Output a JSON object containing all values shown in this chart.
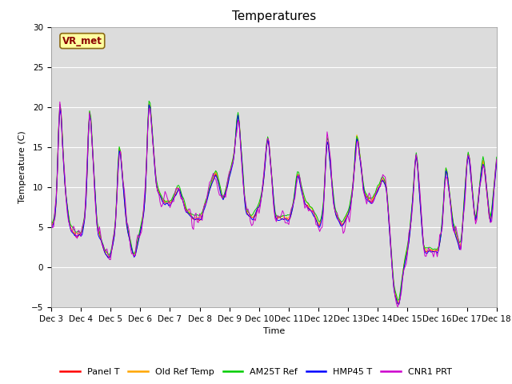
{
  "title": "Temperatures",
  "xlabel": "Time",
  "ylabel": "Temperature (C)",
  "ylim": [
    -5,
    30
  ],
  "xlim": [
    0,
    360
  ],
  "fig_bg_color": "#ffffff",
  "plot_bg_color": "#dcdcdc",
  "annotation_text": "VR_met",
  "annotation_color": "#8b0000",
  "annotation_bg": "#ffffa0",
  "annotation_border": "#8b6914",
  "series": [
    {
      "name": "Panel T",
      "color": "#ff0000"
    },
    {
      "name": "Old Ref Temp",
      "color": "#ffa500"
    },
    {
      "name": "AM25T Ref",
      "color": "#00cc00"
    },
    {
      "name": "HMP45 T",
      "color": "#0000ff"
    },
    {
      "name": "CNR1 PRT",
      "color": "#cc00cc"
    }
  ],
  "x_ticks": [
    0,
    24,
    48,
    72,
    96,
    120,
    144,
    168,
    192,
    216,
    240,
    264,
    288,
    312,
    336,
    360
  ],
  "x_tick_labels": [
    "Dec 3",
    "Dec 4",
    "Dec 5",
    "Dec 6",
    "Dec 7",
    "Dec 8",
    "Dec 9",
    "Dec 10",
    "Dec 11",
    "Dec 12",
    "Dec 13",
    "Dec 14",
    "Dec 15",
    "Dec 16",
    "Dec 17",
    "Dec 18"
  ],
  "y_ticks": [
    -5,
    0,
    5,
    10,
    15,
    20,
    25,
    30
  ],
  "grid_color": "#ffffff",
  "title_fontsize": 11,
  "axis_label_fontsize": 8,
  "tick_fontsize": 7.5,
  "legend_fontsize": 8
}
